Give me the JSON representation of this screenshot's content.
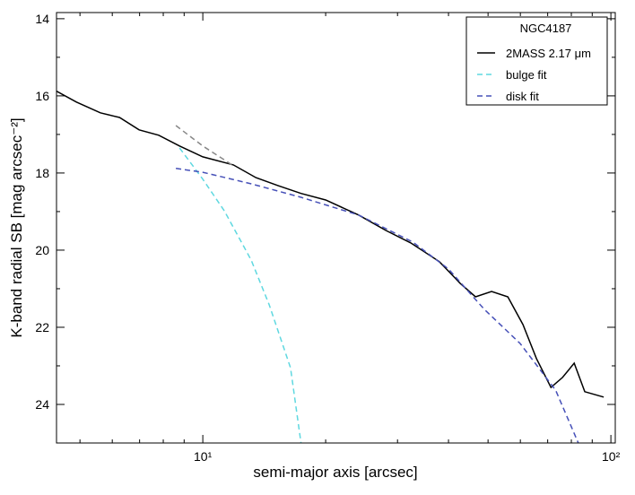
{
  "chart_data": {
    "type": "line",
    "xscale": "log",
    "xlabel": "semi-major axis [arcsec]",
    "ylabel": "K-band radial SB [mag arcsec⁻²]",
    "xlim": [
      4.38,
      102.5
    ],
    "ylim": [
      25,
      13.84
    ],
    "xticks": [
      {
        "value": 10,
        "label": "10¹"
      },
      {
        "value": 100,
        "label": "10²"
      }
    ],
    "xminorticks": [
      5,
      6,
      7,
      8,
      9,
      20,
      30,
      40,
      50,
      60,
      70,
      80,
      90
    ],
    "yticks": [
      14,
      16,
      18,
      20,
      22,
      24
    ],
    "yminorticks": [
      15,
      17,
      19,
      21,
      23,
      25
    ],
    "legend_title": "NGC4187",
    "legend": "upper right",
    "series": [
      {
        "name": "2MASS 2.17 μm",
        "color": "#000000",
        "dash": "solid",
        "x": [
          4.38,
          4.9,
          5.61,
          6.25,
          6.98,
          7.8,
          8.77,
          10,
          11.88,
          13.5,
          15.3,
          17.4,
          20.0,
          24.1,
          28.1,
          32.3,
          38.0,
          42.7,
          46.6,
          51.0,
          55.9,
          60.9,
          65.7,
          71.3,
          76.1,
          81.3,
          86.3,
          96.0
        ],
        "values": [
          15.88,
          16.16,
          16.44,
          16.56,
          16.88,
          17.02,
          17.3,
          17.58,
          17.79,
          18.12,
          18.33,
          18.53,
          18.7,
          19.09,
          19.49,
          19.81,
          20.3,
          20.86,
          21.21,
          21.07,
          21.21,
          21.93,
          22.81,
          23.56,
          23.3,
          22.93,
          23.67,
          23.81
        ]
      },
      {
        "name": "bulge fit",
        "color": "#5fd8e0",
        "dash": "dashed",
        "x": [
          8.77,
          10,
          11.29,
          13.14,
          14.55,
          16.4,
          17.4
        ],
        "values": [
          17.35,
          18.16,
          18.98,
          20.26,
          21.42,
          23.05,
          25.0
        ]
      },
      {
        "name": "disk fit",
        "color": "#4650b8",
        "dash": "dashed",
        "x": [
          8.59,
          10,
          13.14,
          17.4,
          24.1,
          32.7,
          40.0,
          48.9,
          59.9,
          73.2,
          83.2
        ],
        "values": [
          17.88,
          17.98,
          18.28,
          18.63,
          19.09,
          19.79,
          20.49,
          21.53,
          22.42,
          23.63,
          25.0
        ]
      },
      {
        "color": "#888888",
        "dash": "dashed",
        "x": [
          8.59,
          10,
          11.88
        ],
        "values": [
          16.77,
          17.3,
          17.81
        ]
      }
    ]
  }
}
